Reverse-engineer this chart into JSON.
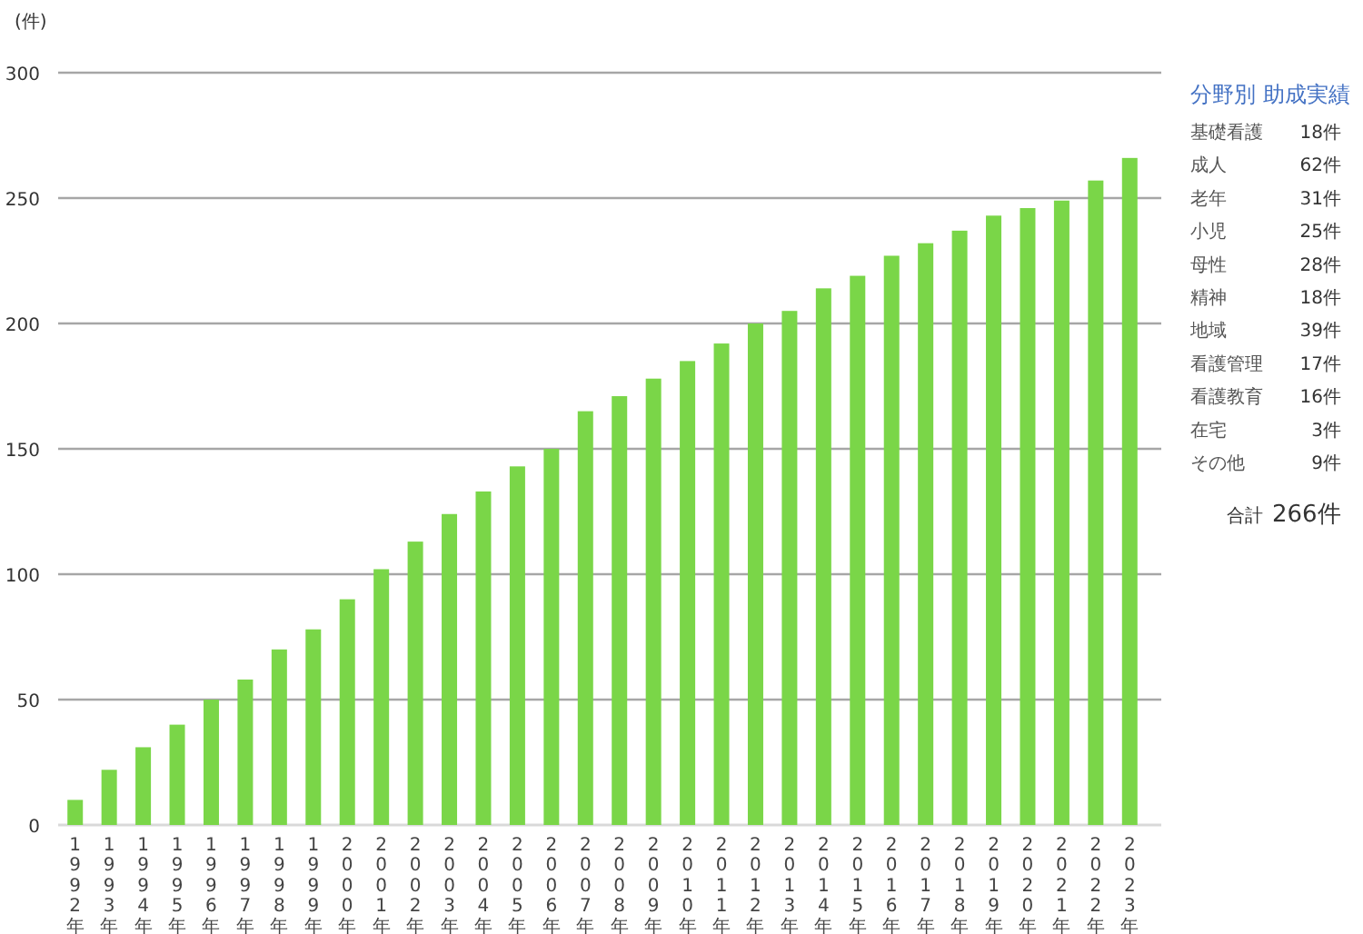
{
  "chart_data": [
    {
      "type": "bar",
      "ylabel": "(件)",
      "color": "#7ad648",
      "grid": "y",
      "ylim": [
        0,
        300
      ],
      "yticks": [
        0,
        50,
        100,
        150,
        200,
        250,
        300
      ],
      "categories": [
        "1992年",
        "1993年",
        "1994年",
        "1995年",
        "1996年",
        "1997年",
        "1998年",
        "1999年",
        "2000年",
        "2001年",
        "2002年",
        "2003年",
        "2004年",
        "2005年",
        "2006年",
        "2007年",
        "2008年",
        "2009年",
        "2010年",
        "2011年",
        "2012年",
        "2013年",
        "2014年",
        "2015年",
        "2016年",
        "2017年",
        "2018年",
        "2019年",
        "2020年",
        "2021年",
        "2022年",
        "2023年"
      ],
      "values": [
        10,
        22,
        31,
        40,
        50,
        58,
        70,
        78,
        90,
        102,
        113,
        124,
        133,
        143,
        150,
        165,
        171,
        178,
        185,
        192,
        200,
        205,
        214,
        219,
        227,
        232,
        237,
        243,
        246,
        249,
        257,
        266
      ]
    },
    {
      "type": "other",
      "title": "分野別 助成実績",
      "categories": [
        "基礎看護",
        "成人",
        "老年",
        "小児",
        "母性",
        "精神",
        "地域",
        "看護管理",
        "看護教育",
        "在宅",
        "その他"
      ],
      "value_labels": [
        "18件",
        "62件",
        "31件",
        "25件",
        "28件",
        "18件",
        "39件",
        "17件",
        "16件",
        "3件",
        "9件"
      ],
      "annotations": [
        "合計",
        "266件"
      ]
    }
  ]
}
